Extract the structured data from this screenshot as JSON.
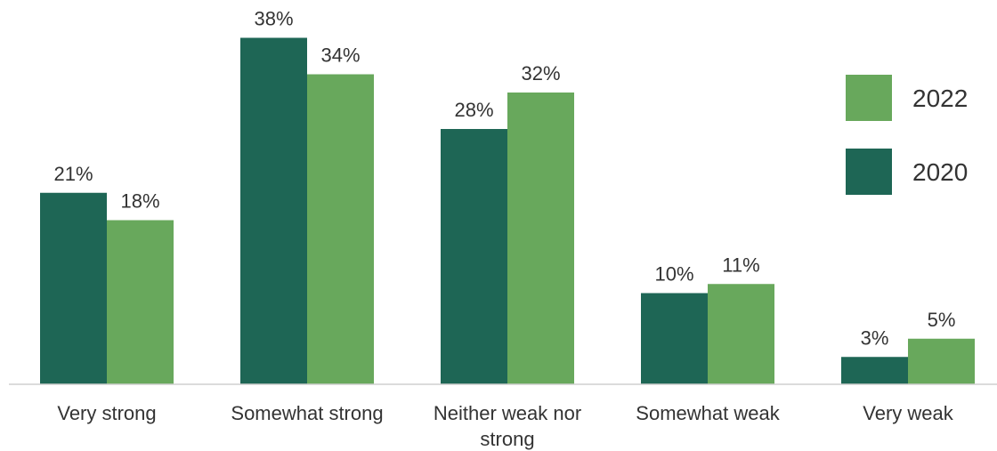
{
  "chart_data": {
    "type": "bar",
    "categories": [
      [
        "Very strong"
      ],
      [
        "Somewhat strong"
      ],
      [
        "Neither weak nor",
        "strong"
      ],
      [
        "Somewhat weak"
      ],
      [
        "Very weak"
      ]
    ],
    "series": [
      {
        "name": "2020",
        "values": [
          21,
          38,
          28,
          10,
          3
        ],
        "labels": [
          "21%",
          "38%",
          "28%",
          "10%",
          "3%"
        ],
        "color": "#1e6655"
      },
      {
        "name": "2022",
        "values": [
          18,
          34,
          32,
          11,
          5
        ],
        "labels": [
          "18%",
          "34%",
          "32%",
          "11%",
          "5%"
        ],
        "color": "#68a85c"
      }
    ],
    "legend": {
      "position": "right",
      "entries": [
        "2022",
        "2020"
      ]
    },
    "ylim": [
      0,
      40
    ],
    "grid": false,
    "title": "",
    "xlabel": "",
    "ylabel": ""
  }
}
